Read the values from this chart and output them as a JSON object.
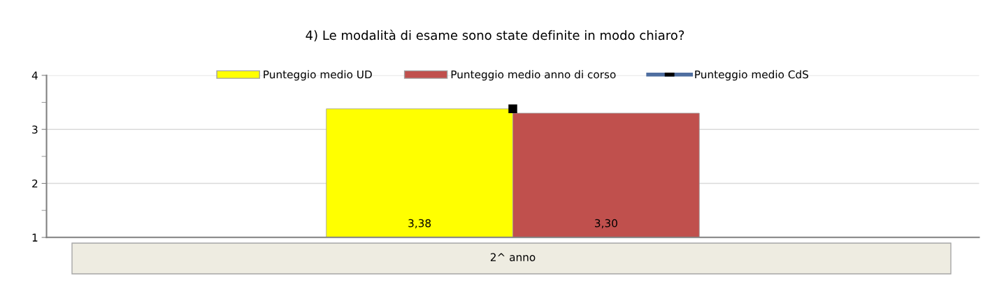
{
  "chart_data": {
    "type": "bar",
    "title": "4) Le modalità di esame sono state definite in modo chiaro?",
    "categories": [
      "2^ anno"
    ],
    "series": [
      {
        "name": "Punteggio medio UD",
        "color": "#ffff00",
        "values": [
          3.38
        ],
        "value_labels": [
          "3,38"
        ]
      },
      {
        "name": "Punteggio medio anno di corso",
        "color": "#c0504d",
        "values": [
          3.3
        ],
        "value_labels": [
          "3,30"
        ]
      },
      {
        "name": "Punteggio medio CdS",
        "type": "line",
        "color": "#000000",
        "values": [
          3.38
        ]
      }
    ],
    "ylim": [
      1,
      4
    ],
    "yticks": [
      1,
      {
        "value": 1.5,
        "label": null
      },
      2,
      {
        "value": 2.5,
        "label": null
      },
      3,
      {
        "value": 3.5,
        "label": null
      },
      4
    ],
    "grid": "y",
    "legend": "top",
    "marker": "square"
  }
}
